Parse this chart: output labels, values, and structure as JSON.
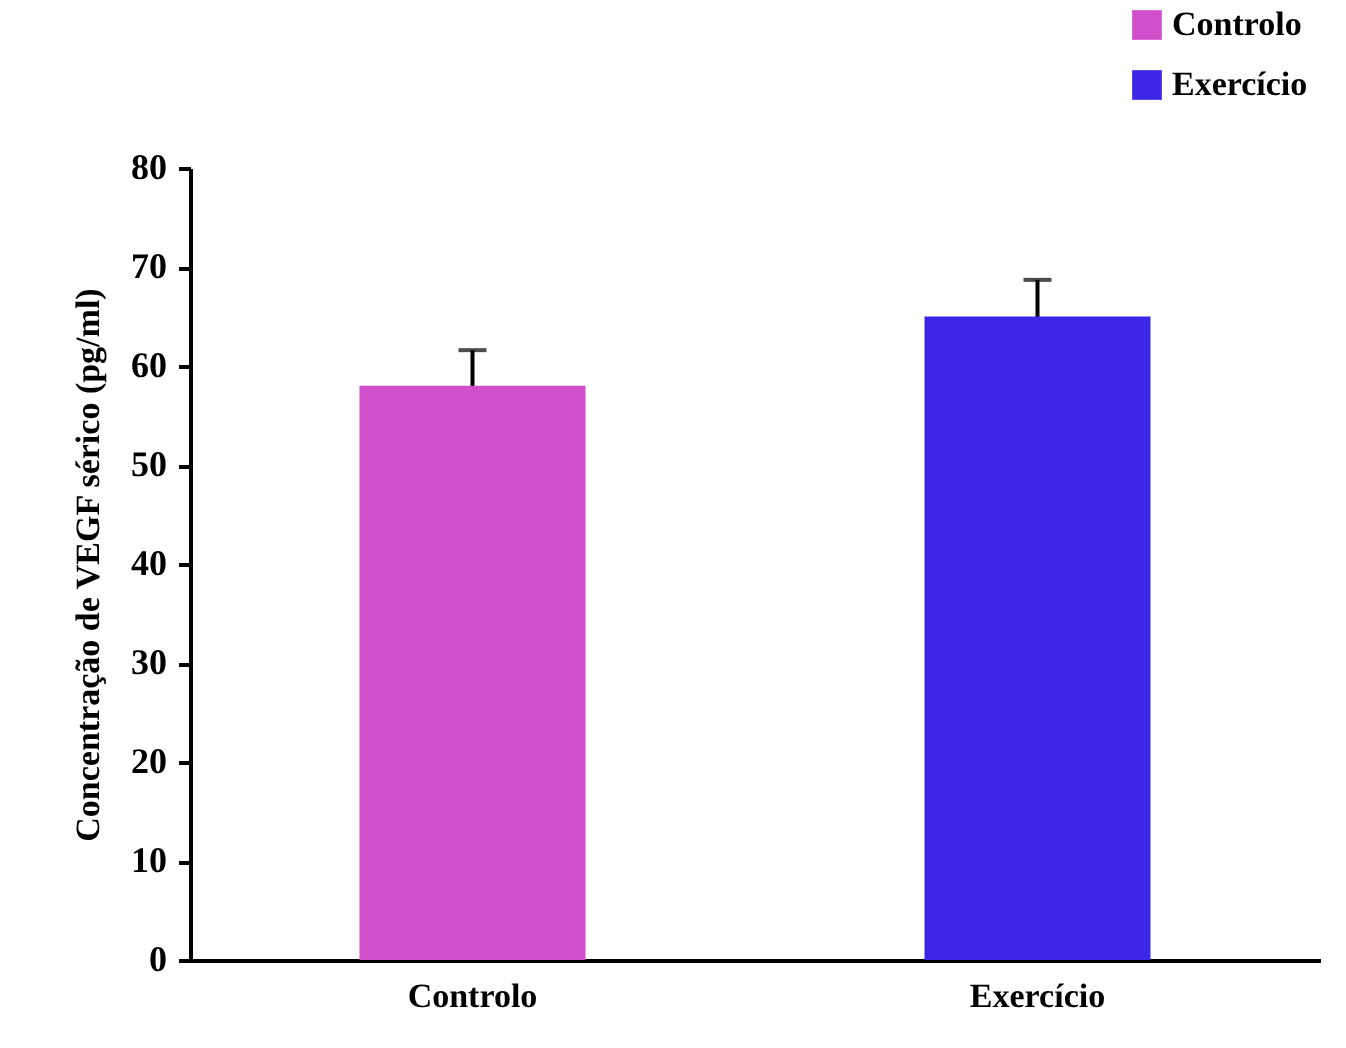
{
  "chart_data": {
    "type": "bar",
    "ylabel": "Concentração de VEGF sérico (pg/ml)",
    "categories": [
      "Controlo",
      "Exercício"
    ],
    "series": [
      {
        "name": "Controlo",
        "color": "#d24fcc",
        "values": [
          58,
          null
        ],
        "errors": [
          3.6,
          null
        ]
      },
      {
        "name": "Exercício",
        "color": "#3d27e6",
        "values": [
          null,
          65
        ],
        "errors": [
          null,
          3.7
        ]
      }
    ],
    "ylim": [
      0,
      80
    ],
    "yticks": [
      0,
      10,
      20,
      30,
      40,
      50,
      60,
      70,
      80
    ],
    "grid": false,
    "legend": "top right"
  }
}
